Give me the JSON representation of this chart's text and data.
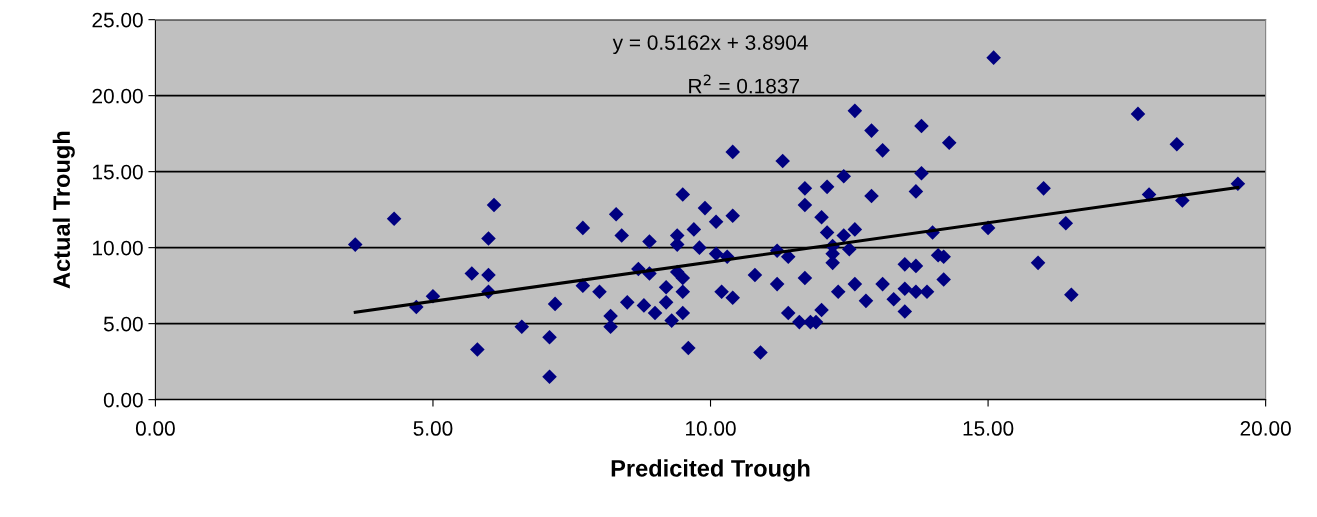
{
  "chart_data": {
    "type": "scatter",
    "xlabel": "Predicited Trough",
    "ylabel": "Actual Trough",
    "annotations": [
      "y = 0.5162x + 3.8904",
      "R$^{2}$ = 0.1837"
    ],
    "xlim": [
      0,
      20
    ],
    "ylim": [
      0,
      25
    ],
    "xticks": [
      {
        "value": 0,
        "label": "0.00"
      },
      {
        "value": 5,
        "label": "5.00"
      },
      {
        "value": 10,
        "label": "10.00"
      },
      {
        "value": 15,
        "label": "15.00"
      },
      {
        "value": 20,
        "label": "20.00"
      }
    ],
    "yticks": [
      {
        "value": 0,
        "label": "0.00"
      },
      {
        "value": 5,
        "label": "5.00"
      },
      {
        "value": 10,
        "label": "10.00"
      },
      {
        "value": 15,
        "label": "15.00"
      },
      {
        "value": 20,
        "label": "20.00"
      },
      {
        "value": 25,
        "label": "25.00"
      }
    ],
    "grid": "y",
    "series": [
      {
        "color": "#000080",
        "marker": "diamond",
        "x": [
          3.6,
          4.3,
          4.7,
          5.0,
          5.7,
          5.8,
          6.0,
          6.0,
          6.0,
          6.1,
          6.6,
          7.1,
          7.1,
          7.2,
          7.7,
          7.7,
          8.0,
          8.2,
          8.2,
          8.3,
          8.4,
          8.5,
          8.7,
          8.8,
          8.9,
          8.9,
          9.0,
          9.2,
          9.2,
          9.3,
          9.4,
          9.4,
          9.4,
          9.5,
          9.5,
          9.5,
          9.5,
          9.6,
          9.7,
          9.8,
          9.9,
          10.1,
          10.1,
          10.3,
          10.2,
          10.4,
          10.4,
          10.4,
          10.8,
          10.9,
          11.2,
          11.2,
          11.3,
          11.4,
          11.4,
          11.6,
          11.7,
          11.7,
          11.7,
          11.8,
          11.9,
          12.0,
          12.0,
          12.1,
          12.1,
          12.2,
          12.2,
          12.2,
          12.3,
          12.4,
          12.4,
          12.5,
          12.6,
          12.6,
          12.6,
          12.8,
          12.9,
          12.9,
          13.1,
          13.1,
          13.3,
          13.5,
          13.5,
          13.5,
          13.7,
          13.7,
          13.7,
          13.8,
          13.8,
          13.9,
          14.0,
          14.2,
          14.1,
          14.2,
          14.3,
          15.1,
          15.0,
          15.9,
          16.0,
          16.4,
          16.5,
          17.7,
          17.9,
          18.4,
          18.5,
          19.5
        ],
        "values": [
          10.2,
          11.9,
          6.1,
          6.8,
          8.3,
          3.3,
          8.2,
          7.1,
          10.6,
          12.8,
          4.8,
          4.1,
          1.5,
          6.3,
          11.3,
          7.5,
          7.1,
          5.5,
          4.8,
          12.2,
          10.8,
          6.4,
          8.6,
          6.2,
          8.3,
          10.4,
          5.7,
          7.4,
          6.4,
          5.2,
          10.8,
          10.2,
          8.4,
          8.0,
          7.1,
          5.7,
          13.5,
          3.4,
          11.2,
          10.0,
          12.6,
          11.7,
          9.6,
          9.4,
          7.1,
          6.7,
          16.3,
          12.1,
          8.2,
          3.1,
          7.6,
          9.8,
          15.7,
          5.7,
          9.4,
          5.1,
          13.9,
          12.8,
          8.0,
          5.1,
          5.1,
          12.0,
          5.9,
          14.0,
          11.0,
          10.1,
          9.6,
          9.0,
          7.1,
          10.8,
          14.7,
          9.9,
          19.0,
          11.2,
          7.6,
          6.5,
          13.4,
          17.7,
          16.4,
          7.6,
          6.6,
          8.9,
          7.3,
          5.8,
          8.8,
          7.1,
          13.7,
          18.0,
          14.9,
          7.1,
          11.0,
          7.9,
          9.5,
          9.4,
          16.9,
          22.5,
          11.3,
          9.0,
          13.9,
          11.6,
          6.9,
          18.8,
          13.5,
          16.8,
          13.1,
          14.2
        ]
      },
      {
        "type": "line",
        "color": "#000000",
        "line_style": "solid",
        "x": [
          3.6,
          19.5
        ],
        "values": [
          5.75,
          13.96
        ]
      }
    ]
  }
}
